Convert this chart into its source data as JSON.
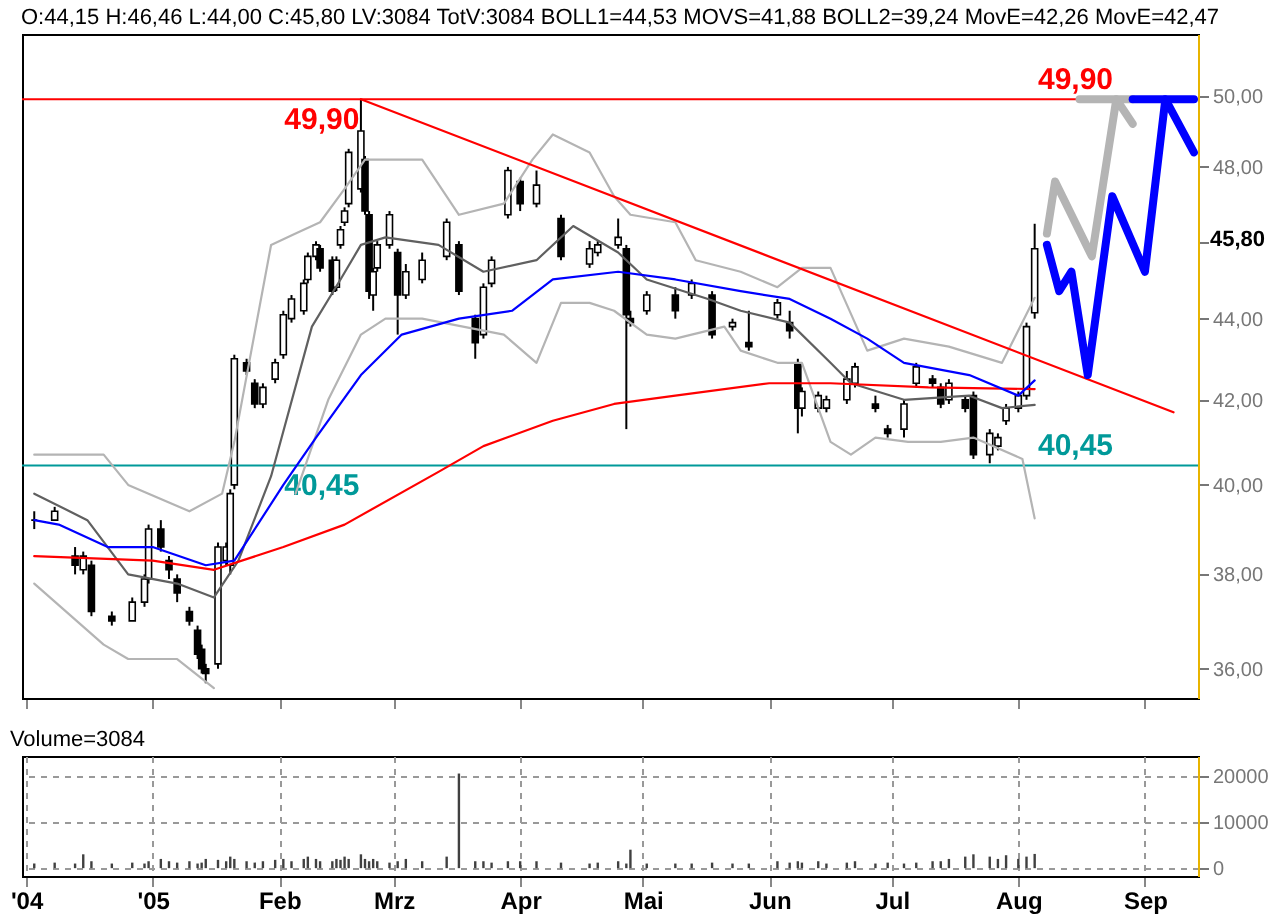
{
  "chart_data": [
    {
      "type": "candlestick",
      "title": "O:44,15 H:46,46 L:44,00 C:45,80 LV:3084 TotV:3084 BOLL1=44,53 MOVS=41,88 BOLL2=39,24 MovE=42,26 MovE=42,47",
      "log": "y",
      "tick_labels": "y",
      "xlim": [
        "2004-11-30",
        "2005-09-14"
      ],
      "ylim": [
        35.4,
        51.8
      ],
      "xticks": [
        {
          "value": "2004-12-01",
          "label": null
        },
        {
          "value": "2005-01-01",
          "label": null
        },
        {
          "value": "2005-02-01",
          "label": null
        },
        {
          "value": "2005-03-01",
          "label": null
        },
        {
          "value": "2005-04-01",
          "label": null
        },
        {
          "value": "2005-05-01",
          "label": null
        },
        {
          "value": "2005-06-01",
          "label": null
        },
        {
          "value": "2005-07-01",
          "label": null
        },
        {
          "value": "2005-08-01",
          "label": null
        },
        {
          "value": "2005-09-01",
          "label": null
        }
      ],
      "yticks": [
        {
          "value": 36,
          "label": "36,00"
        },
        {
          "value": 38,
          "label": "38,00"
        },
        {
          "value": 40,
          "label": "40,00"
        },
        {
          "value": 42,
          "label": "42,00"
        },
        {
          "value": 44,
          "label": "44,00"
        },
        {
          "value": 46,
          "label": null
        },
        {
          "value": 48,
          "label": "48,00"
        },
        {
          "value": 50,
          "label": "50,00"
        }
      ],
      "x": [
        "2004-12-03",
        "2004-12-08",
        "2004-12-13",
        "2004-12-15",
        "2004-12-17",
        "2004-12-22",
        "2004-12-27",
        "2004-12-30",
        "2004-12-31",
        "2005-01-03",
        "2005-01-05",
        "2005-01-07",
        "2005-01-10",
        "2005-01-12",
        "2005-01-13",
        "2005-01-14",
        "2005-01-17",
        "2005-01-19",
        "2005-01-20",
        "2005-01-21",
        "2005-01-24",
        "2005-01-26",
        "2005-01-28",
        "2005-01-31",
        "2005-02-02",
        "2005-02-04",
        "2005-02-07",
        "2005-02-08",
        "2005-02-10",
        "2005-02-11",
        "2005-02-14",
        "2005-02-15",
        "2005-02-16",
        "2005-02-17",
        "2005-02-18",
        "2005-02-21",
        "2005-02-22",
        "2005-02-23",
        "2005-02-24",
        "2005-02-25",
        "2005-02-28",
        "2005-03-02",
        "2005-03-04",
        "2005-03-08",
        "2005-03-14",
        "2005-03-17",
        "2005-03-21",
        "2005-03-23",
        "2005-03-25",
        "2005-03-29",
        "2005-04-01",
        "2005-04-05",
        "2005-04-11",
        "2005-04-18",
        "2005-04-20",
        "2005-04-25",
        "2005-04-27",
        "2005-04-28",
        "2005-05-02",
        "2005-05-09",
        "2005-05-13",
        "2005-05-18",
        "2005-05-23",
        "2005-05-27",
        "2005-06-03",
        "2005-06-06",
        "2005-06-08",
        "2005-06-09",
        "2005-06-13",
        "2005-06-15",
        "2005-06-20",
        "2005-06-22",
        "2005-06-27",
        "2005-06-30",
        "2005-07-04",
        "2005-07-07",
        "2005-07-11",
        "2005-07-13",
        "2005-07-15",
        "2005-07-19",
        "2005-07-21",
        "2005-07-25",
        "2005-07-27",
        "2005-07-29",
        "2005-08-01",
        "2005-08-03",
        "2005-08-05"
      ],
      "ohlc": [
        [
          39.2,
          39.4,
          39.0,
          39.2
        ],
        [
          39.2,
          39.5,
          39.2,
          39.4
        ],
        [
          38.4,
          38.6,
          38.0,
          38.2
        ],
        [
          38.1,
          38.5,
          38.0,
          38.4
        ],
        [
          38.2,
          38.3,
          37.1,
          37.2
        ],
        [
          37.1,
          37.2,
          36.9,
          37.0
        ],
        [
          37.0,
          37.5,
          37.0,
          37.4
        ],
        [
          37.4,
          38.0,
          37.3,
          37.9
        ],
        [
          37.9,
          39.1,
          37.8,
          39.0
        ],
        [
          39.0,
          39.2,
          38.5,
          38.6
        ],
        [
          38.3,
          38.4,
          37.9,
          38.1
        ],
        [
          37.9,
          38.0,
          37.4,
          37.6
        ],
        [
          37.2,
          37.3,
          36.9,
          37.0
        ],
        [
          36.8,
          36.9,
          36.2,
          36.3
        ],
        [
          36.4,
          36.5,
          35.9,
          36.0
        ],
        [
          36.0,
          36.1,
          35.7,
          35.9
        ],
        [
          36.1,
          38.7,
          36.0,
          38.6
        ],
        [
          38.3,
          38.7,
          38.2,
          38.6
        ],
        [
          38.2,
          39.9,
          38.0,
          39.8
        ],
        [
          40.0,
          43.1,
          39.9,
          43.0
        ],
        [
          42.9,
          43.0,
          42.6,
          42.7
        ],
        [
          42.4,
          42.5,
          41.8,
          41.9
        ],
        [
          41.9,
          42.4,
          41.8,
          42.3
        ],
        [
          42.5,
          43.0,
          42.4,
          42.9
        ],
        [
          43.1,
          44.2,
          43.0,
          44.1
        ],
        [
          44.0,
          44.6,
          43.9,
          44.5
        ],
        [
          44.2,
          45.0,
          44.1,
          44.9
        ],
        [
          45.0,
          45.7,
          44.9,
          45.6
        ],
        [
          45.6,
          46.0,
          45.5,
          45.9
        ],
        [
          45.8,
          45.9,
          45.2,
          45.3
        ],
        [
          45.5,
          45.6,
          44.6,
          44.7
        ],
        [
          44.8,
          45.6,
          44.7,
          45.5
        ],
        [
          45.9,
          46.4,
          45.8,
          46.3
        ],
        [
          46.5,
          46.9,
          46.4,
          46.8
        ],
        [
          47.0,
          48.5,
          46.9,
          48.4
        ],
        [
          47.4,
          49.9,
          47.3,
          49.0
        ],
        [
          48.2,
          48.3,
          46.7,
          46.8
        ],
        [
          46.7,
          46.8,
          44.5,
          44.7
        ],
        [
          44.6,
          45.3,
          44.2,
          45.2
        ],
        [
          45.3,
          46.0,
          45.2,
          45.9
        ],
        [
          45.9,
          46.8,
          45.8,
          46.7
        ],
        [
          45.7,
          45.8,
          43.6,
          44.6
        ],
        [
          44.6,
          45.4,
          44.5,
          45.2
        ],
        [
          45.0,
          45.7,
          44.9,
          45.5
        ],
        [
          45.6,
          46.6,
          45.5,
          46.5
        ],
        [
          45.9,
          46.0,
          44.6,
          44.7
        ],
        [
          44.0,
          44.1,
          43.0,
          43.4
        ],
        [
          43.6,
          44.9,
          43.5,
          44.8
        ],
        [
          44.9,
          45.6,
          44.8,
          45.5
        ],
        [
          46.7,
          48.0,
          46.6,
          47.9
        ],
        [
          47.6,
          47.7,
          46.8,
          47.0
        ],
        [
          47.0,
          47.9,
          46.9,
          47.5
        ],
        [
          46.6,
          46.7,
          45.5,
          45.6
        ],
        [
          45.4,
          46.0,
          45.3,
          45.8
        ],
        [
          45.7,
          46.0,
          45.6,
          45.9
        ],
        [
          45.9,
          46.6,
          45.8,
          46.1
        ],
        [
          45.8,
          45.9,
          41.3,
          44.1
        ],
        [
          44.0,
          44.2,
          43.8,
          43.9
        ],
        [
          44.2,
          44.7,
          44.1,
          44.6
        ],
        [
          44.6,
          44.8,
          44.0,
          44.2
        ],
        [
          44.6,
          45.0,
          44.5,
          44.9
        ],
        [
          44.6,
          44.7,
          43.5,
          43.6
        ],
        [
          43.8,
          44.0,
          43.7,
          43.9
        ],
        [
          43.4,
          44.2,
          43.2,
          43.3
        ],
        [
          44.1,
          44.5,
          44.0,
          44.4
        ],
        [
          43.9,
          44.2,
          43.5,
          43.7
        ],
        [
          42.9,
          43.0,
          41.2,
          41.8
        ],
        [
          41.8,
          42.3,
          41.6,
          42.2
        ],
        [
          41.8,
          42.2,
          41.7,
          42.1
        ],
        [
          41.8,
          42.1,
          41.7,
          42.0
        ],
        [
          42.0,
          42.7,
          41.9,
          42.5
        ],
        [
          42.4,
          42.9,
          42.3,
          42.8
        ],
        [
          41.9,
          42.1,
          41.7,
          41.8
        ],
        [
          41.3,
          41.4,
          41.1,
          41.2
        ],
        [
          41.3,
          42.0,
          41.1,
          41.9
        ],
        [
          42.4,
          42.9,
          42.3,
          42.8
        ],
        [
          42.5,
          42.6,
          42.3,
          42.4
        ],
        [
          42.3,
          42.4,
          41.8,
          41.9
        ],
        [
          42.0,
          42.5,
          41.9,
          42.4
        ],
        [
          42.0,
          42.1,
          41.7,
          41.8
        ],
        [
          42.1,
          42.2,
          40.6,
          40.7
        ],
        [
          40.7,
          41.3,
          40.5,
          41.2
        ],
        [
          40.9,
          41.2,
          40.8,
          41.1
        ],
        [
          41.5,
          41.9,
          41.4,
          41.8
        ],
        [
          41.8,
          42.2,
          41.7,
          42.1
        ],
        [
          42.1,
          43.9,
          42.0,
          43.8
        ],
        [
          44.15,
          46.46,
          44.0,
          45.8
        ]
      ],
      "series": [
        {
          "type": "line",
          "color": "#b4b4b4",
          "x": [
            "2004-12-03",
            "2004-12-20",
            "2004-12-26",
            "2005-01-10",
            "2005-01-18",
            "2005-01-21",
            "2005-01-30",
            "2005-02-05",
            "2005-02-11",
            "2005-02-17",
            "2005-02-22",
            "2005-03-08",
            "2005-03-17",
            "2005-03-28",
            "2005-04-04",
            "2005-04-09",
            "2005-04-18",
            "2005-04-24",
            "2005-04-28",
            "2005-05-09",
            "2005-05-14",
            "2005-05-25",
            "2005-06-03",
            "2005-06-09",
            "2005-06-16",
            "2005-06-25",
            "2005-07-04",
            "2005-07-15",
            "2005-07-28",
            "2005-08-05"
          ],
          "values": [
            40.7,
            40.7,
            40.0,
            39.4,
            39.8,
            41.0,
            45.9,
            46.2,
            46.5,
            47.4,
            48.2,
            48.2,
            46.7,
            47.0,
            48.2,
            48.9,
            48.4,
            47.2,
            46.7,
            46.5,
            45.5,
            45.2,
            44.8,
            45.3,
            45.3,
            43.2,
            43.5,
            43.3,
            42.9,
            44.53
          ]
        },
        {
          "type": "line",
          "color": "#b4b4b4",
          "x": [
            "2004-12-03",
            "2004-12-20",
            "2004-12-26",
            "2005-01-07",
            "2005-01-16",
            "2005-01-21",
            "2005-01-30",
            "2005-02-05",
            "2005-02-13",
            "2005-02-21",
            "2005-02-27",
            "2005-03-08",
            "2005-03-28",
            "2005-04-05",
            "2005-04-11",
            "2005-04-18",
            "2005-04-24",
            "2005-05-02",
            "2005-05-09",
            "2005-05-21",
            "2005-05-25",
            "2005-06-03",
            "2005-06-09",
            "2005-06-16",
            "2005-06-21",
            "2005-06-27",
            "2005-07-05",
            "2005-07-13",
            "2005-07-21",
            "2005-08-02",
            "2005-08-05"
          ],
          "values": [
            37.8,
            36.5,
            36.2,
            36.2,
            35.6,
            null,
            null,
            39.8,
            42.0,
            43.6,
            44.0,
            44.0,
            43.6,
            42.9,
            44.4,
            44.4,
            44.2,
            43.6,
            43.5,
            43.8,
            43.2,
            42.9,
            42.9,
            41.0,
            40.7,
            41.1,
            41.0,
            41.0,
            41.1,
            40.6,
            39.24
          ]
        },
        {
          "type": "line",
          "color": "#606060",
          "x": [
            "2004-12-03",
            "2004-12-16",
            "2004-12-26",
            "2005-01-07",
            "2005-01-16",
            "2005-01-22",
            "2005-01-30",
            "2005-02-09",
            "2005-02-16",
            "2005-02-21",
            "2005-02-27",
            "2005-03-12",
            "2005-03-23",
            "2005-04-05",
            "2005-04-14",
            "2005-04-25",
            "2005-05-02",
            "2005-05-17",
            "2005-05-25",
            "2005-06-06",
            "2005-06-16",
            "2005-06-21",
            "2005-07-04",
            "2005-07-20",
            "2005-07-28",
            "2005-08-05"
          ],
          "values": [
            39.8,
            39.2,
            38.0,
            37.8,
            37.5,
            38.3,
            40.2,
            43.8,
            45.0,
            45.9,
            46.1,
            45.9,
            45.2,
            45.5,
            46.4,
            45.7,
            45.0,
            44.5,
            44.2,
            43.9,
            42.9,
            42.4,
            42.0,
            42.1,
            41.8,
            41.88
          ]
        },
        {
          "type": "line",
          "color": "#ff0000",
          "x": [
            "2004-12-03",
            "2005-01-01",
            "2005-01-16",
            "2005-02-02",
            "2005-02-17",
            "2005-03-12",
            "2005-03-23",
            "2005-04-09",
            "2005-04-24",
            "2005-05-09",
            "2005-06-01",
            "2005-06-16",
            "2005-07-10",
            "2005-08-05"
          ],
          "values": [
            38.4,
            38.3,
            38.1,
            38.6,
            39.1,
            40.3,
            40.9,
            41.5,
            41.9,
            42.1,
            42.4,
            42.4,
            42.3,
            42.26
          ]
        },
        {
          "type": "line",
          "color": "#0000ff",
          "x": [
            "2004-12-03",
            "2004-12-09",
            "2004-12-21",
            "2005-01-01",
            "2005-01-14",
            "2005-01-21",
            "2005-02-02",
            "2005-02-10",
            "2005-02-21",
            "2005-03-03",
            "2005-03-17",
            "2005-03-30",
            "2005-04-09",
            "2005-04-25",
            "2005-05-09",
            "2005-05-25",
            "2005-06-06",
            "2005-06-16",
            "2005-06-25",
            "2005-07-04",
            "2005-07-20",
            "2005-08-01",
            "2005-08-05"
          ],
          "values": [
            39.2,
            39.1,
            38.6,
            38.6,
            38.2,
            38.3,
            40.0,
            41.1,
            42.6,
            43.6,
            44.0,
            44.2,
            45.0,
            45.2,
            45.0,
            44.7,
            44.5,
            44.0,
            43.5,
            42.9,
            42.6,
            42.1,
            42.47
          ]
        },
        {
          "type": "line",
          "color": "#ff0000",
          "x": [
            "2005-02-21",
            "2005-09-08"
          ],
          "values": [
            49.9,
            41.7
          ]
        },
        {
          "type": "line",
          "color": "#b4b4b4",
          "x": [
            "2005-08-08",
            "2005-08-10",
            "2005-08-19",
            "2005-08-25",
            "2005-08-29"
          ],
          "values": [
            46.2,
            47.6,
            45.6,
            49.9,
            49.2
          ]
        },
        {
          "type": "line",
          "color": "#b4b4b4",
          "x": [
            "2005-08-16",
            "2005-08-29"
          ],
          "values": [
            49.9,
            49.9
          ]
        },
        {
          "type": "line",
          "color": "#0000ff",
          "x": [
            "2005-08-08",
            "2005-08-11",
            "2005-08-14",
            "2005-08-18",
            "2005-08-24",
            "2005-09-01",
            "2005-09-06",
            "2005-09-13"
          ],
          "values": [
            45.9,
            44.7,
            45.2,
            42.6,
            47.2,
            45.2,
            49.9,
            48.4
          ]
        },
        {
          "type": "line",
          "color": "#0000ff",
          "x": [
            "2005-08-29",
            "2005-09-13"
          ],
          "values": [
            49.9,
            49.9
          ]
        }
      ],
      "ref_lines": [
        {
          "axis": "y",
          "value": 49.9,
          "label": "49,90",
          "color": "#ff0000"
        },
        {
          "axis": "y",
          "value": 40.45,
          "label": "40,45",
          "color": "#009999"
        }
      ],
      "annotations": [
        {
          "text": "49,90",
          "x": "2005-08-15",
          "y": 49.9
        },
        {
          "text": "40,45",
          "x": "2005-08-15",
          "y": 40.45
        },
        "45,80"
      ]
    },
    {
      "type": "bar",
      "title": "Volume=3084",
      "grid": true,
      "xlim": [
        "2004-11-30",
        "2005-09-14"
      ],
      "ylim": [
        -1700,
        24300
      ],
      "xticks": [
        {
          "value": "2004-12-01",
          "label": "'04"
        },
        {
          "value": "2005-01-01",
          "label": "'05"
        },
        {
          "value": "2005-02-01",
          "label": "Feb"
        },
        {
          "value": "2005-03-01",
          "label": "Mrz"
        },
        {
          "value": "2005-04-01",
          "label": "Apr"
        },
        {
          "value": "2005-05-01",
          "label": "Mai"
        },
        {
          "value": "2005-06-01",
          "label": "Jun"
        },
        {
          "value": "2005-07-01",
          "label": "Jul"
        },
        {
          "value": "2005-08-01",
          "label": "Aug"
        },
        {
          "value": "2005-09-01",
          "label": "Sep"
        }
      ],
      "yticks": [
        0,
        10000,
        20000
      ],
      "x": [
        "2004-12-03",
        "2004-12-08",
        "2004-12-13",
        "2004-12-15",
        "2004-12-17",
        "2004-12-22",
        "2004-12-27",
        "2004-12-30",
        "2004-12-31",
        "2005-01-03",
        "2005-01-05",
        "2005-01-07",
        "2005-01-10",
        "2005-01-12",
        "2005-01-13",
        "2005-01-14",
        "2005-01-17",
        "2005-01-19",
        "2005-01-20",
        "2005-01-21",
        "2005-01-24",
        "2005-01-26",
        "2005-01-28",
        "2005-01-31",
        "2005-02-02",
        "2005-02-04",
        "2005-02-07",
        "2005-02-08",
        "2005-02-10",
        "2005-02-11",
        "2005-02-14",
        "2005-02-15",
        "2005-02-16",
        "2005-02-17",
        "2005-02-18",
        "2005-02-21",
        "2005-02-22",
        "2005-02-23",
        "2005-02-24",
        "2005-02-25",
        "2005-02-28",
        "2005-03-02",
        "2005-03-04",
        "2005-03-08",
        "2005-03-14",
        "2005-03-17",
        "2005-03-21",
        "2005-03-23",
        "2005-03-25",
        "2005-03-29",
        "2005-04-01",
        "2005-04-05",
        "2005-04-11",
        "2005-04-18",
        "2005-04-20",
        "2005-04-25",
        "2005-04-27",
        "2005-04-28",
        "2005-05-02",
        "2005-05-09",
        "2005-05-13",
        "2005-05-18",
        "2005-05-23",
        "2005-05-27",
        "2005-06-03",
        "2005-06-06",
        "2005-06-08",
        "2005-06-09",
        "2005-06-13",
        "2005-06-15",
        "2005-06-20",
        "2005-06-22",
        "2005-06-27",
        "2005-06-30",
        "2005-07-04",
        "2005-07-07",
        "2005-07-11",
        "2005-07-13",
        "2005-07-15",
        "2005-07-19",
        "2005-07-21",
        "2005-07-25",
        "2005-07-27",
        "2005-07-29",
        "2005-08-01",
        "2005-08-03",
        "2005-08-05"
      ],
      "series": [
        {
          "color": "#404040",
          "values": [
            1000,
            1200,
            1000,
            3000,
            1500,
            1000,
            1200,
            1000,
            1500,
            2000,
            1500,
            1200,
            1500,
            1000,
            1200,
            2000,
            1800,
            1500,
            2500,
            2000,
            1500,
            1200,
            1500,
            1800,
            2000,
            1500,
            2000,
            2500,
            2000,
            1500,
            1500,
            2000,
            1800,
            2500,
            2000,
            3000,
            2000,
            1500,
            2000,
            1500,
            1200,
            1500,
            2000,
            1500,
            2500,
            20500,
            1500,
            1500,
            1200,
            1500,
            1500,
            1500,
            1200,
            1000,
            1200,
            1500,
            1000,
            4000,
            1000,
            1000,
            1000,
            1200,
            1000,
            1000,
            1500,
            1200,
            1500,
            1200,
            1500,
            1000,
            1200,
            1500,
            1000,
            1200,
            1000,
            1200,
            1500,
            1500,
            2000,
            2500,
            3000,
            2500,
            2000,
            2800,
            2000,
            2500,
            3084
          ]
        }
      ]
    }
  ]
}
